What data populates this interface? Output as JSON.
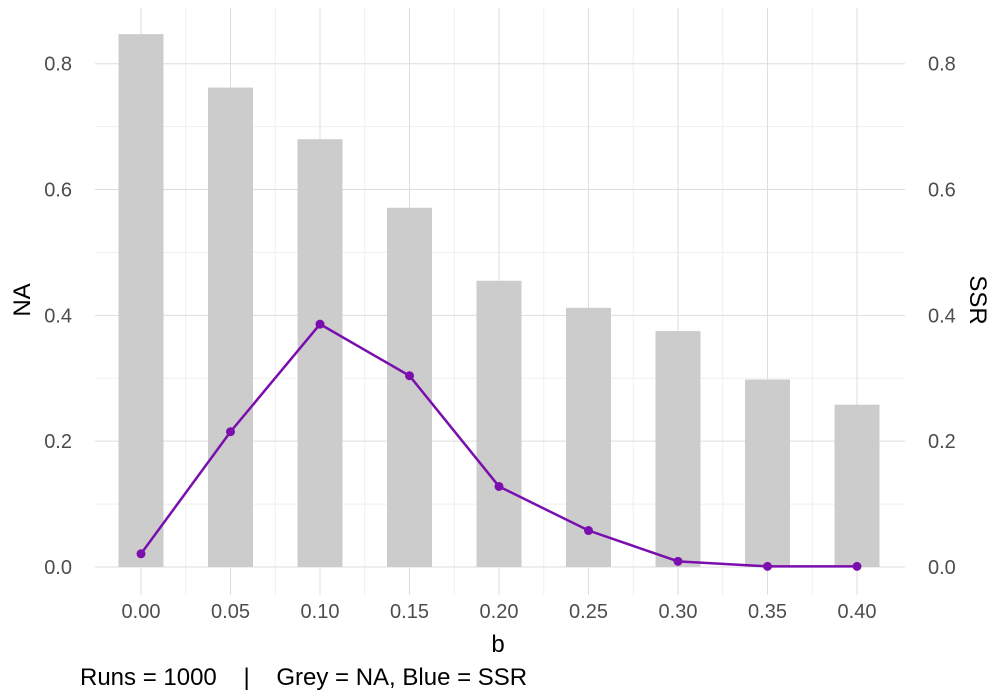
{
  "chart_data": {
    "type": "bar",
    "categories": [
      "0.00",
      "0.05",
      "0.10",
      "0.15",
      "0.20",
      "0.25",
      "0.30",
      "0.35",
      "0.40"
    ],
    "series": [
      {
        "name": "NA",
        "type": "bar",
        "values": [
          0.847,
          0.762,
          0.68,
          0.571,
          0.455,
          0.412,
          0.375,
          0.298,
          0.258
        ]
      },
      {
        "name": "SSR",
        "type": "line",
        "values": [
          0.021,
          0.215,
          0.386,
          0.304,
          0.128,
          0.058,
          0.009,
          0.001,
          0.001
        ]
      }
    ],
    "xlabel": "b",
    "ylabel": "NA",
    "y2label": "SSR",
    "ylim": [
      -0.045,
      0.885
    ],
    "yticks": [
      0.0,
      0.2,
      0.4,
      0.6,
      0.8
    ],
    "ytick_labels": [
      "0.0",
      "0.2",
      "0.4",
      "0.6",
      "0.8"
    ],
    "caption": "Runs = 1000    |    Grey = NA, Blue = SSR",
    "grid": true,
    "colors": {
      "bar": "#cccccc",
      "line": "#7b0fad",
      "grid": "#dedede",
      "tick_text": "#4d4d4d"
    }
  }
}
